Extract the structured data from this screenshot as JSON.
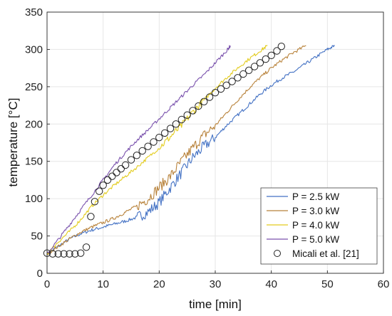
{
  "chart_data": {
    "type": "line",
    "xlabel": "time [min]",
    "ylabel": "temperature [°C]",
    "xlim": [
      0,
      60
    ],
    "ylim": [
      0,
      350
    ],
    "xticks": [
      0,
      10,
      20,
      30,
      40,
      50,
      60
    ],
    "yticks": [
      0,
      50,
      100,
      150,
      200,
      250,
      300,
      350
    ],
    "grid": true,
    "legend_position": "bottom-right",
    "series": [
      {
        "name": "P = 2.5 kW",
        "color": "#4472c4",
        "style": "line",
        "x": [
          0,
          2,
          4,
          6,
          8,
          10,
          12,
          14,
          16,
          18,
          20,
          22,
          24,
          26,
          28,
          30,
          32,
          34,
          36,
          38,
          40,
          42,
          44,
          46,
          48,
          50,
          51.3
        ],
        "y": [
          26,
          36,
          46,
          53,
          58,
          62,
          66,
          70,
          75,
          82,
          95,
          115,
          135,
          155,
          170,
          182,
          198,
          212,
          226,
          240,
          252,
          262,
          270,
          280,
          290,
          300,
          305
        ]
      },
      {
        "name": "P = 3.0 kW",
        "color": "#b8823a",
        "style": "line",
        "x": [
          0,
          2,
          4,
          6,
          8,
          10,
          12,
          14,
          16,
          18,
          20,
          22,
          24,
          26,
          28,
          30,
          32,
          34,
          36,
          38,
          40,
          42,
          44,
          46.2
        ],
        "y": [
          26,
          36,
          46,
          55,
          62,
          68,
          74,
          82,
          90,
          100,
          115,
          130,
          150,
          168,
          185,
          198,
          215,
          232,
          248,
          262,
          275,
          286,
          296,
          305
        ]
      },
      {
        "name": "P = 4.0 kW",
        "color": "#e3cc1f",
        "style": "line",
        "x": [
          0,
          2,
          4,
          6,
          8,
          10,
          12,
          14,
          16,
          18,
          20,
          22,
          24,
          26,
          28,
          30,
          32,
          34,
          36,
          38,
          39.3
        ],
        "y": [
          26,
          42,
          56,
          72,
          90,
          105,
          118,
          130,
          142,
          155,
          168,
          183,
          198,
          216,
          232,
          248,
          262,
          275,
          287,
          298,
          305
        ]
      },
      {
        "name": "P = 5.0 kW",
        "color": "#7a52ad",
        "style": "line",
        "x": [
          0,
          2,
          4,
          6,
          8,
          10,
          12,
          14,
          16,
          18,
          20,
          22,
          24,
          26,
          28,
          30,
          32,
          32.7
        ],
        "y": [
          26,
          45,
          65,
          85,
          105,
          125,
          145,
          162,
          178,
          192,
          207,
          222,
          237,
          252,
          266,
          282,
          298,
          305
        ]
      },
      {
        "name": "Micali et al. [21]",
        "color": "#222222",
        "style": "markers",
        "x": [
          0,
          1,
          2,
          3,
          4,
          5,
          6,
          7,
          7.8,
          8.5,
          9.3,
          10,
          10.8,
          11.6,
          12.4,
          13.2,
          14,
          15,
          16,
          17,
          18,
          19,
          20,
          21,
          22,
          23,
          24,
          25,
          26,
          27,
          28,
          29,
          30,
          31,
          32,
          33,
          34,
          35,
          36,
          37,
          38,
          39,
          40,
          41,
          41.8
        ],
        "y": [
          27,
          26,
          26,
          26,
          26,
          26,
          27,
          35,
          76,
          96,
          110,
          118,
          125,
          130,
          135,
          140,
          145,
          152,
          158,
          164,
          170,
          176,
          182,
          188,
          194,
          200,
          206,
          212,
          218,
          224,
          230,
          236,
          242,
          247,
          252,
          257,
          262,
          267,
          272,
          277,
          282,
          287,
          292,
          298,
          304
        ]
      }
    ]
  }
}
